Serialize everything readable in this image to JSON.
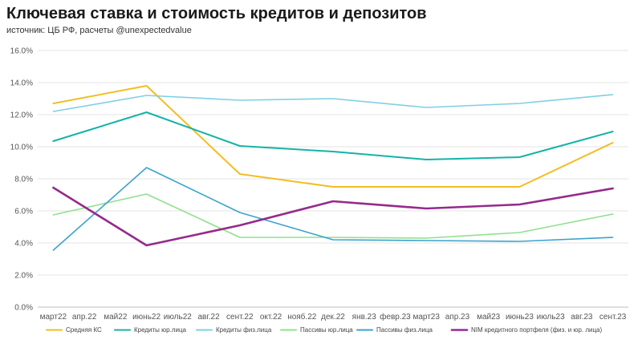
{
  "title": "Ключевая ставка и стоимость кредитов и депозитов",
  "subtitle": "источник: ЦБ РФ, расчеты @unexpectedvalue",
  "chart_data": {
    "type": "line",
    "categories": [
      "март22",
      "апр.22",
      "май22",
      "июнь22",
      "июль22",
      "авг.22",
      "сент.22",
      "окт.22",
      "нояб.22",
      "дек.22",
      "янв.23",
      "февр.23",
      "март23",
      "апр.23",
      "май23",
      "июнь23",
      "июль23",
      "авг.23",
      "сент.23"
    ],
    "y_ticks": [
      "0.0%",
      "2.0%",
      "4.0%",
      "6.0%",
      "8.0%",
      "10.0%",
      "12.0%",
      "14.0%",
      "16.0%"
    ],
    "ylim": [
      0,
      16
    ],
    "grid": true,
    "legend_position": "bottom",
    "series": [
      {
        "name": "Средняя КС",
        "color": "#F2BE22",
        "width": 2,
        "x": [
          0,
          3,
          6,
          9,
          12,
          15,
          18
        ],
        "values": [
          12.7,
          13.8,
          8.3,
          7.5,
          7.5,
          7.5,
          10.25
        ]
      },
      {
        "name": "Кредиты юр.лица",
        "color": "#14B3A8",
        "width": 2,
        "x": [
          0,
          3,
          6,
          9,
          12,
          15,
          18
        ],
        "values": [
          10.35,
          12.15,
          10.05,
          9.7,
          9.2,
          9.35,
          10.95
        ]
      },
      {
        "name": "Кредиты физ.лица",
        "color": "#7FCFE3",
        "width": 1.6,
        "x": [
          0,
          3,
          6,
          9,
          12,
          15,
          18
        ],
        "values": [
          12.2,
          13.2,
          12.9,
          13.0,
          12.45,
          12.7,
          13.25
        ]
      },
      {
        "name": "Пассивы юр.лица",
        "color": "#8FE08F",
        "width": 1.6,
        "x": [
          0,
          3,
          6,
          9,
          12,
          15,
          18
        ],
        "values": [
          5.75,
          7.05,
          4.35,
          4.35,
          4.3,
          4.65,
          5.8
        ]
      },
      {
        "name": "Пассивы физ.лица",
        "color": "#3BA3CC",
        "width": 1.6,
        "x": [
          0,
          3,
          6,
          9,
          12,
          15,
          18
        ],
        "values": [
          3.55,
          8.7,
          5.9,
          4.2,
          4.15,
          4.1,
          4.35
        ]
      },
      {
        "name": "NIM кредитного портфеля (физ. и юр. лица)",
        "color": "#952A8C",
        "width": 2.6,
        "x": [
          0,
          3,
          6,
          9,
          12,
          15,
          18
        ],
        "values": [
          7.45,
          3.85,
          5.1,
          6.6,
          6.15,
          6.4,
          7.4
        ]
      }
    ]
  }
}
